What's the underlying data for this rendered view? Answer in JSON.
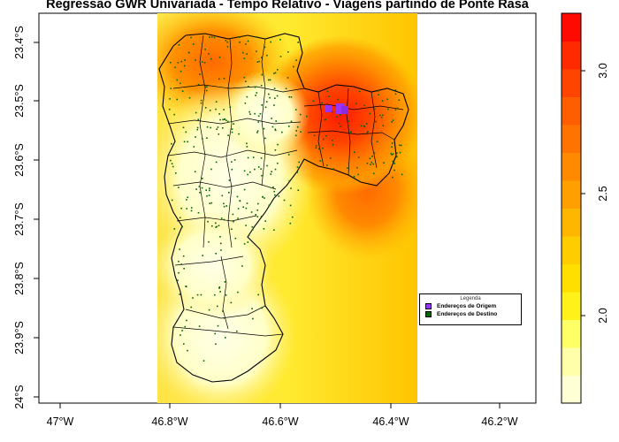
{
  "title": "Regressão GWR Univariada - Tempo Relativo - Viagens partindo de Ponte Rasa",
  "x_ticks": [
    "47°W",
    "46.8°W",
    "46.6°W",
    "46.4°W",
    "46.2°W"
  ],
  "y_ticks": [
    "23.4°S",
    "23.5°S",
    "23.6°S",
    "23.7°S",
    "23.8°S",
    "23.9°S",
    "24°S"
  ],
  "colorbar": {
    "labels": [
      "2.0",
      "2.5",
      "3.0"
    ],
    "colors": [
      "#FFFFD6",
      "#FFFFAA",
      "#FFFF66",
      "#FFF21A",
      "#FFDF00",
      "#FFCC00",
      "#FFB600",
      "#FFA000",
      "#FF8A00",
      "#FF7400",
      "#FF5E00",
      "#FF4400",
      "#FF2A00",
      "#FF0A00"
    ]
  },
  "legend": {
    "title": "Legenda",
    "items": [
      {
        "label": "Endereços de Origem",
        "color": "#9933FF"
      },
      {
        "label": "Endereços de Destino",
        "color": "#006400"
      }
    ]
  },
  "surface_colors": {
    "low": "#FFFFE0",
    "mid": "#FFE000",
    "high": "#FF8000",
    "peak": "#FF2A00"
  }
}
